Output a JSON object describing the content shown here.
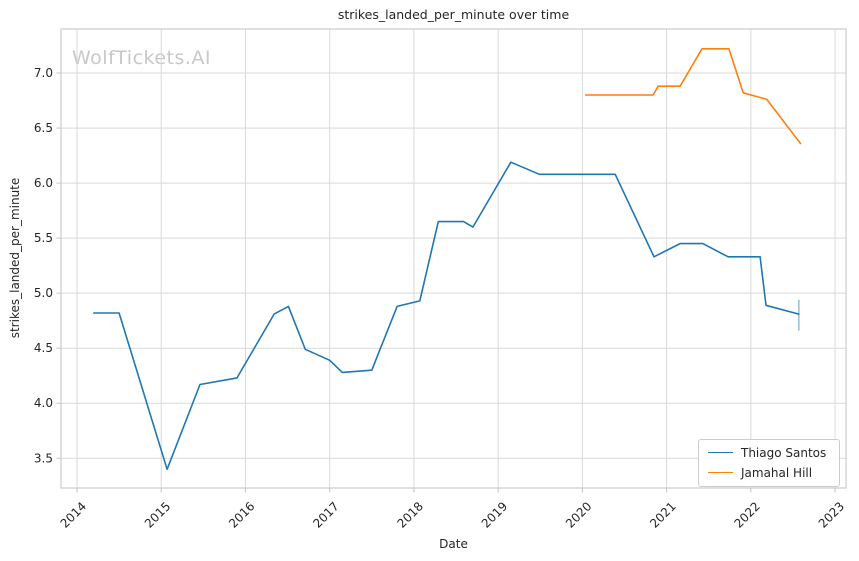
{
  "chart_data": {
    "type": "line",
    "title": "strikes_landed_per_minute over time",
    "xlabel": "Date",
    "ylabel": "strikes_landed_per_minute",
    "watermark": "WolfTickets.AI",
    "grid": true,
    "legend_position": "lower right",
    "xlim": [
      2013.81,
      2023.13
    ],
    "ylim": [
      3.23,
      7.4
    ],
    "x_ticks": [
      2014,
      2015,
      2016,
      2017,
      2018,
      2019,
      2020,
      2021,
      2022,
      2023
    ],
    "y_ticks": [
      3.5,
      4.0,
      4.5,
      5.0,
      5.5,
      6.0,
      6.5,
      7.0
    ],
    "colors": {
      "grid": "#d9d9d9",
      "spine": "#cccccc",
      "tick": "#c4c4c4",
      "text": "#262626",
      "watermark": "#c8c8c8"
    },
    "series": [
      {
        "name": "Thiago Santos",
        "color": "#1f77b4",
        "x": [
          2014.2,
          2014.5,
          2015.07,
          2015.46,
          2015.9,
          2016.34,
          2016.51,
          2016.71,
          2017.0,
          2017.15,
          2017.5,
          2017.8,
          2018.07,
          2018.29,
          2018.59,
          2018.7,
          2019.15,
          2019.49,
          2020.39,
          2020.85,
          2021.16,
          2021.43,
          2021.73,
          2022.11,
          2022.18,
          2022.57
        ],
        "y": [
          4.82,
          4.82,
          3.4,
          4.17,
          4.23,
          4.81,
          4.88,
          4.49,
          4.39,
          4.28,
          4.3,
          4.88,
          4.93,
          5.65,
          5.65,
          5.6,
          6.19,
          6.08,
          6.08,
          5.33,
          5.45,
          5.45,
          5.33,
          5.33,
          4.89,
          4.81
        ]
      },
      {
        "name": "Jamahal Hill",
        "color": "#ff7f0e",
        "x": [
          2020.04,
          2020.84,
          2020.9,
          2021.16,
          2021.42,
          2021.74,
          2021.91,
          2022.19,
          2022.59
        ],
        "y": [
          6.8,
          6.8,
          6.88,
          6.88,
          7.22,
          7.22,
          6.82,
          6.76,
          6.36
        ]
      }
    ],
    "error_bar": {
      "series": "Thiago Santos",
      "x": 2022.57,
      "y_low": 4.66,
      "y_high": 4.94,
      "color": "rgba(31,119,180,0.45)"
    }
  }
}
